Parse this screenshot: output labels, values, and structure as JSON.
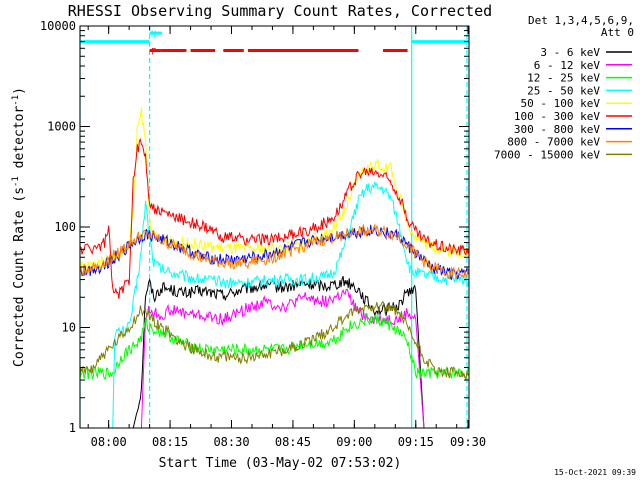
{
  "chart_data": {
    "type": "line",
    "title": "RHESSI Observing Summary Count Rates, Corrected",
    "xlabel": "Start Time (03-May-02 07:53:02)",
    "ylabel_main": "Corrected Count Rate (s",
    "ylabel_sup1": "-1",
    "ylabel_mid": " detector",
    "ylabel_sup2": "-1",
    "ylabel_end": ")",
    "ylog": true,
    "ylim": [
      1,
      10000
    ],
    "xlim": [
      0,
      95
    ],
    "x_unit": "minutes since 07:53:02",
    "xticks": [
      {
        "t": 7,
        "label": "08:00"
      },
      {
        "t": 22,
        "label": "08:15"
      },
      {
        "t": 37,
        "label": "08:30"
      },
      {
        "t": 52,
        "label": "08:45"
      },
      {
        "t": 67,
        "label": "09:00"
      },
      {
        "t": 82,
        "label": "09:15"
      },
      {
        "t": 97,
        "label": "09:30"
      }
    ],
    "yticks": [
      {
        "v": 1,
        "label": "1"
      },
      {
        "v": 10,
        "label": "10"
      },
      {
        "v": 100,
        "label": "100"
      },
      {
        "v": 1000,
        "label": "1000"
      },
      {
        "v": 10000,
        "label": "10000"
      }
    ],
    "legend_header": [
      "Det 1,3,4,5,6,9,",
      "Att 0"
    ],
    "legend_position": "right",
    "series": [
      {
        "name": "3 - 6 keV",
        "color": "#000000",
        "x": [
          0,
          8,
          10,
          12,
          13,
          14,
          15,
          16,
          17,
          18,
          20,
          22,
          25,
          30,
          35,
          40,
          45,
          50,
          55,
          60,
          65,
          68,
          70,
          72,
          75,
          78,
          80,
          81,
          82,
          84,
          86,
          88,
          90,
          92,
          95
        ],
        "y": [
          1,
          1,
          1,
          1,
          1,
          1.5,
          2.5,
          22,
          28,
          20,
          25,
          24,
          22,
          23,
          21,
          24,
          26,
          25,
          27,
          26,
          29,
          24,
          18,
          15,
          15,
          17,
          23,
          24,
          23,
          1,
          1,
          1,
          1,
          1,
          1
        ]
      },
      {
        "name": "6 - 12 keV",
        "color": "#ff00ff",
        "x": [
          0,
          8,
          10,
          12,
          13,
          14,
          15,
          16,
          17,
          18,
          20,
          22,
          25,
          30,
          35,
          40,
          45,
          50,
          55,
          60,
          65,
          68,
          70,
          72,
          75,
          78,
          80,
          81,
          82,
          84,
          86,
          88,
          90,
          92,
          95
        ],
        "y": [
          1,
          1,
          1,
          1,
          1,
          1,
          1,
          13,
          15,
          14,
          13,
          15,
          14,
          13,
          12,
          15,
          18,
          16,
          20,
          18,
          22,
          14,
          13,
          12,
          12,
          12,
          14,
          13,
          12,
          1,
          1,
          1,
          1,
          1,
          1
        ]
      },
      {
        "name": "12 - 25 keV",
        "color": "#00ff00",
        "x": [
          0,
          3,
          5,
          8,
          10,
          12,
          14,
          15,
          16,
          17,
          20,
          25,
          30,
          35,
          40,
          45,
          50,
          55,
          60,
          63,
          65,
          68,
          70,
          72,
          75,
          78,
          80,
          81,
          82,
          84,
          86,
          88,
          90,
          92,
          95
        ],
        "y": [
          3.5,
          3.5,
          3.5,
          3.5,
          5,
          6,
          7,
          8,
          11,
          10,
          9,
          7,
          6,
          6,
          6,
          6,
          6,
          7,
          7,
          8,
          10,
          11,
          12,
          12,
          11,
          9,
          7,
          5,
          3.5,
          3.5,
          3.5,
          3.5,
          3.5,
          3.5,
          3.5
        ]
      },
      {
        "name": "25 - 50 keV",
        "color": "#00ffff",
        "x": [
          0,
          3,
          5,
          8,
          8.5,
          9,
          10,
          12,
          14,
          15,
          16,
          17,
          18,
          20,
          22,
          25,
          30,
          35,
          40,
          45,
          50,
          55,
          60,
          62,
          64,
          66,
          68,
          70,
          72,
          74,
          76,
          78,
          80,
          81,
          82,
          84,
          86,
          88,
          90,
          92,
          95
        ],
        "y": [
          1,
          1,
          1,
          1,
          9,
          9,
          9,
          10,
          30,
          60,
          180,
          80,
          45,
          38,
          36,
          33,
          30,
          28,
          28,
          29,
          30,
          30,
          32,
          36,
          55,
          100,
          180,
          240,
          250,
          240,
          190,
          100,
          45,
          35,
          35,
          33,
          32,
          31,
          30,
          30,
          30
        ]
      },
      {
        "name": "50 - 100 keV",
        "color": "#ffff00",
        "x": [
          0,
          3,
          5,
          8,
          10,
          12,
          13,
          14,
          15,
          16,
          17,
          18,
          20,
          22,
          25,
          30,
          35,
          40,
          45,
          50,
          55,
          60,
          62,
          64,
          66,
          68,
          70,
          72,
          74,
          76,
          78,
          80,
          82,
          84,
          86,
          88,
          90,
          92,
          95
        ],
        "y": [
          40,
          42,
          44,
          50,
          55,
          65,
          150,
          900,
          1400,
          700,
          120,
          80,
          75,
          72,
          70,
          65,
          62,
          60,
          60,
          62,
          70,
          85,
          100,
          120,
          200,
          320,
          380,
          420,
          400,
          380,
          200,
          110,
          80,
          70,
          65,
          60,
          58,
          57,
          57
        ]
      },
      {
        "name": "100 - 300 keV",
        "color": "#ff0000",
        "x": [
          0,
          3,
          5,
          6,
          7,
          8,
          10,
          12,
          13,
          14,
          15,
          16,
          17,
          18,
          20,
          22,
          25,
          30,
          35,
          40,
          45,
          50,
          55,
          60,
          62,
          64,
          66,
          68,
          70,
          72,
          74,
          76,
          78,
          80,
          82,
          84,
          86,
          88,
          90,
          92,
          95
        ],
        "y": [
          60,
          62,
          65,
          70,
          100,
          22,
          22,
          30,
          300,
          600,
          700,
          500,
          180,
          150,
          140,
          130,
          120,
          100,
          80,
          75,
          75,
          80,
          90,
          110,
          130,
          170,
          250,
          330,
          350,
          350,
          330,
          280,
          200,
          120,
          90,
          75,
          70,
          65,
          62,
          60,
          60
        ]
      },
      {
        "name": "300 - 800 keV",
        "color": "#0000ff",
        "x": [
          0,
          5,
          10,
          12,
          14,
          15,
          16,
          18,
          20,
          25,
          30,
          35,
          40,
          45,
          50,
          55,
          60,
          65,
          68,
          70,
          72,
          75,
          78,
          80,
          82,
          84,
          86,
          88,
          90,
          92,
          95
        ],
        "y": [
          35,
          40,
          55,
          65,
          75,
          80,
          85,
          80,
          75,
          62,
          50,
          47,
          48,
          52,
          60,
          70,
          78,
          85,
          90,
          92,
          92,
          88,
          80,
          65,
          55,
          45,
          40,
          37,
          35,
          34,
          34
        ]
      },
      {
        "name": "800 - 7000 keV",
        "color": "#ff8000",
        "x": [
          0,
          5,
          10,
          12,
          14,
          15,
          16,
          18,
          20,
          25,
          30,
          35,
          40,
          45,
          50,
          55,
          60,
          65,
          68,
          70,
          72,
          75,
          78,
          80,
          82,
          84,
          86,
          88,
          90,
          92,
          95
        ],
        "y": [
          36,
          42,
          58,
          68,
          78,
          82,
          84,
          80,
          72,
          60,
          48,
          44,
          44,
          47,
          55,
          65,
          75,
          85,
          90,
          92,
          92,
          88,
          80,
          65,
          55,
          45,
          40,
          37,
          35,
          34,
          34
        ]
      },
      {
        "name": "7000 - 15000 keV",
        "color": "#808000",
        "x": [
          0,
          3,
          5,
          8,
          10,
          12,
          14,
          15,
          16,
          18,
          20,
          25,
          30,
          35,
          40,
          45,
          50,
          55,
          60,
          63,
          65,
          68,
          70,
          72,
          75,
          78,
          80,
          82,
          84,
          86,
          88,
          90,
          92,
          95
        ],
        "y": [
          3.5,
          4,
          5,
          6.5,
          8,
          10,
          13,
          15,
          14,
          12,
          10,
          7,
          5.5,
          5,
          5,
          5.5,
          6,
          7,
          9,
          11,
          13,
          15,
          16,
          17,
          16,
          14,
          10,
          7,
          5,
          4,
          3.5,
          3.5,
          3.5,
          3.5
        ]
      }
    ],
    "attenuator_bars": [
      {
        "color": "#00ffff",
        "start": 0,
        "end": 17,
        "level": 7000,
        "label": ""
      },
      {
        "color": "#00ffff",
        "start": 17,
        "end": 20,
        "level": 8500,
        "label": "N"
      },
      {
        "color": "#ff0000",
        "start": 17,
        "end": 20,
        "level": 5700,
        "label": "F"
      },
      {
        "color": "#ff0000",
        "start": 20,
        "end": 26,
        "level": 5700,
        "label": ""
      },
      {
        "color": "#ff0000",
        "start": 27,
        "end": 33,
        "level": 5700,
        "label": ""
      },
      {
        "color": "#ff0000",
        "start": 35,
        "end": 40,
        "level": 5700,
        "label": ""
      },
      {
        "color": "#ff0000",
        "start": 41,
        "end": 68,
        "level": 5700,
        "label": ""
      },
      {
        "color": "#ff0000",
        "start": 74,
        "end": 80,
        "level": 5700,
        "label": ""
      },
      {
        "color": "#00ffff",
        "start": 81,
        "end": 95,
        "level": 7000,
        "label": ""
      }
    ],
    "vertical_lines": [
      {
        "t": 0,
        "color": "#00ffff",
        "dashed": false
      },
      {
        "t": 17,
        "color": "#00ffff",
        "dashed": true
      },
      {
        "t": 81,
        "color": "#00ffff",
        "dashed": false
      },
      {
        "t": 94.5,
        "color": "#00ffff",
        "dashed": true
      }
    ],
    "timestamp": "15-Oct-2021 09:39"
  }
}
